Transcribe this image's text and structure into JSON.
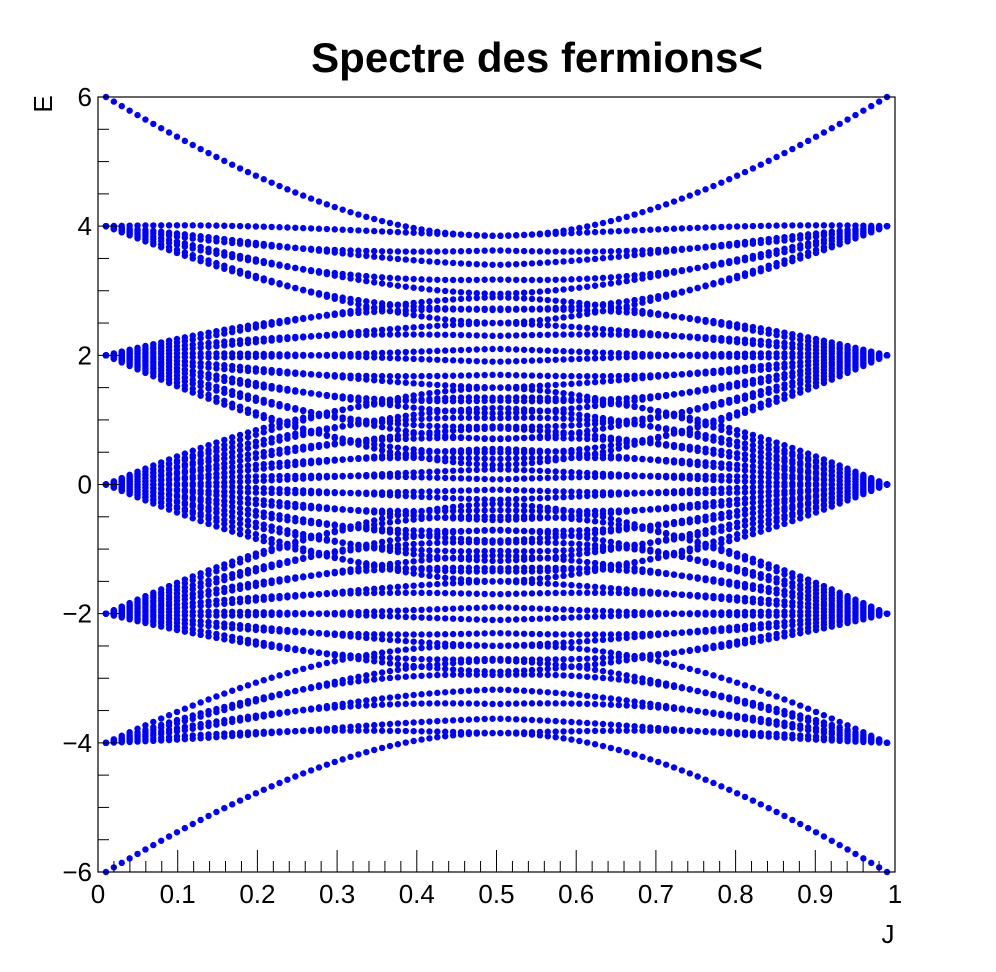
{
  "chart_data": {
    "type": "scatter",
    "title": "Spectre des fermions<",
    "xlabel": "J",
    "ylabel": "E",
    "xlim": [
      0,
      1
    ],
    "ylim": [
      -6,
      6
    ],
    "x_ticks": [
      0,
      0.1,
      0.2,
      0.3,
      0.4,
      0.5,
      0.6,
      0.7,
      0.8,
      0.9,
      1
    ],
    "x_tick_labels": [
      "0",
      "0.1",
      "0.2",
      "0.3",
      "0.4",
      "0.5",
      "0.6",
      "0.7",
      "0.8",
      "0.9",
      "1"
    ],
    "y_ticks": [
      -6,
      -4,
      -2,
      0,
      2,
      4,
      6
    ],
    "y_tick_labels": [
      "−6",
      "−4",
      "−2",
      "0",
      "2",
      "4",
      "6"
    ],
    "grid": false,
    "legend": "none",
    "marker_color": "#0000ff",
    "series_sample_count": 100,
    "series": [
      {
        "type": "levels",
        "x_range": [
          0.01,
          0.99
        ],
        "e_at_ends": [
          6,
          -6
        ],
        "shape": "hyperbolic-crossing",
        "e_min_at_center": 3.85
      },
      {
        "type": "band",
        "ends": 4,
        "center_range": [
          2.5,
          3.85
        ]
      },
      {
        "type": "band",
        "ends": 2,
        "center_range": [
          0.3,
          2.9
        ]
      },
      {
        "type": "band",
        "ends": 0,
        "center_range": [
          -1.5,
          1.5
        ]
      },
      {
        "type": "band",
        "ends": -2,
        "center_range": [
          -2.9,
          -0.3
        ]
      },
      {
        "type": "band",
        "ends": -4,
        "center_range": [
          -3.85,
          -2.5
        ]
      },
      {
        "type": "levels",
        "x_range": [
          0.01,
          0.99
        ],
        "e_at_ends": [
          -6,
          6
        ],
        "shape": "hyperbolic-crossing",
        "e_min_at_center": -3.85
      }
    ]
  }
}
